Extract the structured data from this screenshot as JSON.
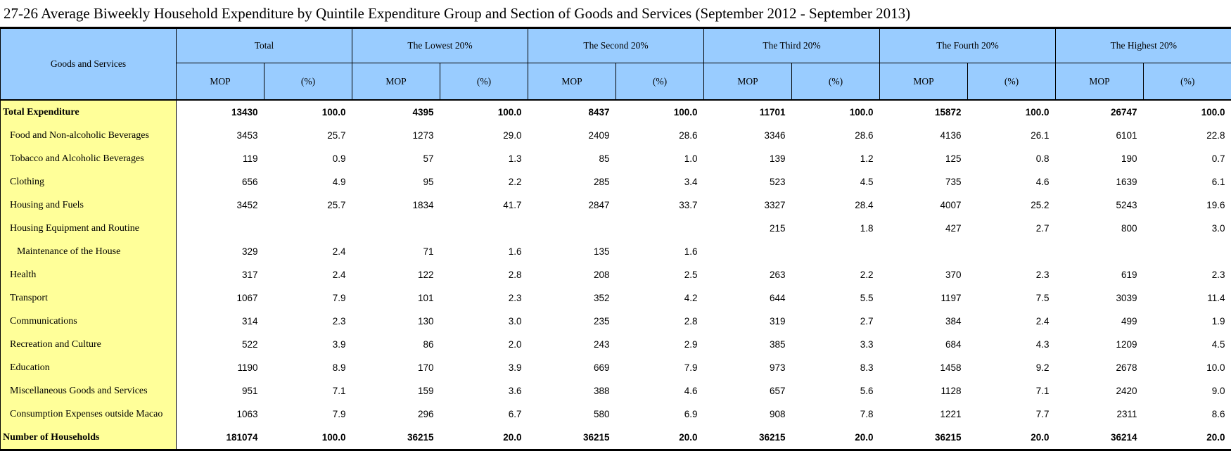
{
  "title": "27-26 Average Biweekly Household Expenditure by Quintile Expenditure Group and Section of Goods and Services (September 2012 - September 2013)",
  "table": {
    "corner_header": "Goods and Services",
    "groups": [
      {
        "label": "Total"
      },
      {
        "label": "The Lowest 20%"
      },
      {
        "label": "The Second 20%"
      },
      {
        "label": "The Third 20%"
      },
      {
        "label": "The Fourth 20%"
      },
      {
        "label": "The Highest 20%"
      }
    ],
    "sub_headers": [
      "MOP",
      "(%)"
    ],
    "rows": [
      {
        "label": "Total Expenditure",
        "bold": true,
        "indent": 0,
        "values": [
          "13430",
          "100.0",
          "4395",
          "100.0",
          "8437",
          "100.0",
          "11701",
          "100.0",
          "15872",
          "100.0",
          "26747",
          "100.0"
        ]
      },
      {
        "label": "Food and Non-alcoholic Beverages",
        "bold": false,
        "indent": 1,
        "values": [
          "3453",
          "25.7",
          "1273",
          "29.0",
          "2409",
          "28.6",
          "3346",
          "28.6",
          "4136",
          "26.1",
          "6101",
          "22.8"
        ]
      },
      {
        "label": "Tobacco and Alcoholic Beverages",
        "bold": false,
        "indent": 1,
        "values": [
          "119",
          "0.9",
          "57",
          "1.3",
          "85",
          "1.0",
          "139",
          "1.2",
          "125",
          "0.8",
          "190",
          "0.7"
        ]
      },
      {
        "label": "Clothing",
        "bold": false,
        "indent": 1,
        "values": [
          "656",
          "4.9",
          "95",
          "2.2",
          "285",
          "3.4",
          "523",
          "4.5",
          "735",
          "4.6",
          "1639",
          "6.1"
        ]
      },
      {
        "label": "Housing and Fuels",
        "bold": false,
        "indent": 1,
        "values": [
          "3452",
          "25.7",
          "1834",
          "41.7",
          "2847",
          "33.7",
          "3327",
          "28.4",
          "4007",
          "25.2",
          "5243",
          "19.6"
        ]
      },
      {
        "label": "Housing Equipment and Routine",
        "bold": false,
        "indent": 1,
        "values": [
          "",
          "",
          "",
          "",
          "",
          "",
          "215",
          "1.8",
          "427",
          "2.7",
          "800",
          "3.0"
        ]
      },
      {
        "label": "Maintenance of the House",
        "bold": false,
        "indent": 2,
        "values": [
          "329",
          "2.4",
          "71",
          "1.6",
          "135",
          "1.6",
          "",
          "",
          "",
          "",
          "",
          ""
        ]
      },
      {
        "label": "Health",
        "bold": false,
        "indent": 1,
        "values": [
          "317",
          "2.4",
          "122",
          "2.8",
          "208",
          "2.5",
          "263",
          "2.2",
          "370",
          "2.3",
          "619",
          "2.3"
        ]
      },
      {
        "label": "Transport",
        "bold": false,
        "indent": 1,
        "values": [
          "1067",
          "7.9",
          "101",
          "2.3",
          "352",
          "4.2",
          "644",
          "5.5",
          "1197",
          "7.5",
          "3039",
          "11.4"
        ]
      },
      {
        "label": "Communications",
        "bold": false,
        "indent": 1,
        "values": [
          "314",
          "2.3",
          "130",
          "3.0",
          "235",
          "2.8",
          "319",
          "2.7",
          "384",
          "2.4",
          "499",
          "1.9"
        ]
      },
      {
        "label": "Recreation and Culture",
        "bold": false,
        "indent": 1,
        "values": [
          "522",
          "3.9",
          "86",
          "2.0",
          "243",
          "2.9",
          "385",
          "3.3",
          "684",
          "4.3",
          "1209",
          "4.5"
        ]
      },
      {
        "label": "Education",
        "bold": false,
        "indent": 1,
        "values": [
          "1190",
          "8.9",
          "170",
          "3.9",
          "669",
          "7.9",
          "973",
          "8.3",
          "1458",
          "9.2",
          "2678",
          "10.0"
        ]
      },
      {
        "label": "Miscellaneous Goods and Services",
        "bold": false,
        "indent": 1,
        "values": [
          "951",
          "7.1",
          "159",
          "3.6",
          "388",
          "4.6",
          "657",
          "5.6",
          "1128",
          "7.1",
          "2420",
          "9.0"
        ]
      },
      {
        "label": "Consumption Expenses outside Macao",
        "bold": false,
        "indent": 1,
        "values": [
          "1063",
          "7.9",
          "296",
          "6.7",
          "580",
          "6.9",
          "908",
          "7.8",
          "1221",
          "7.7",
          "2311",
          "8.6"
        ]
      },
      {
        "label": "Number of Households",
        "bold": true,
        "indent": 0,
        "values": [
          "181074",
          "100.0",
          "36215",
          "20.0",
          "36215",
          "20.0",
          "36215",
          "20.0",
          "36215",
          "20.0",
          "36214",
          "20.0"
        ]
      }
    ],
    "colors": {
      "header_bg": "#99CCFF",
      "label_bg": "#FFFF99",
      "border": "#000000"
    }
  }
}
